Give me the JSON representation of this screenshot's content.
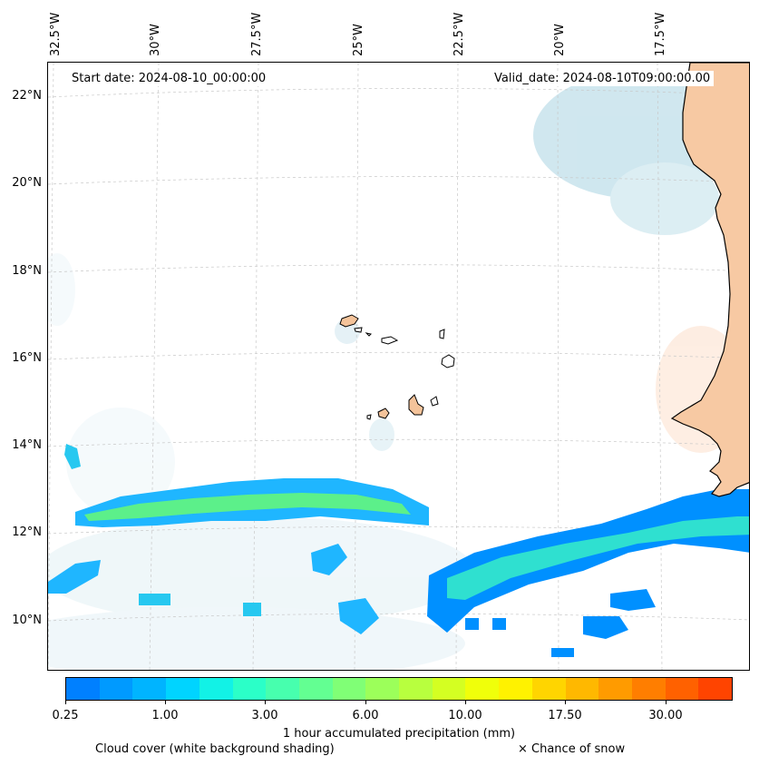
{
  "map": {
    "start_date_text": "Start date: 2024-08-10_00:00:00",
    "valid_date_text": "Valid_date: 2024-08-10T09:00:00.00",
    "lon_labels": [
      "32.5°W",
      "30°W",
      "27.5°W",
      "25°W",
      "22.5°W",
      "20°W",
      "17.5°W"
    ],
    "lat_labels": [
      "22°N",
      "20°N",
      "18°N",
      "16°N",
      "14°N",
      "12°N",
      "10°N"
    ],
    "land_color": "#f4c39a",
    "coast_color": "#000000",
    "cloud_color": "#c9e6ee"
  },
  "colorbar": {
    "colors": [
      "#0080ff",
      "#009aff",
      "#00b4ff",
      "#00d4ff",
      "#12f2e6",
      "#2bffc8",
      "#47ffae",
      "#63ff92",
      "#80ff76",
      "#9cff5a",
      "#b8ff3e",
      "#d4ff22",
      "#f0ff0a",
      "#fff200",
      "#ffd500",
      "#ffb800",
      "#ff9b00",
      "#ff7e00",
      "#ff6100",
      "#ff4400"
    ],
    "tick_labels": [
      "0.25",
      "1.00",
      "3.00",
      "6.00",
      "10.00",
      "17.50",
      "30.00"
    ],
    "label": "1 hour accumulated precipitation (mm)"
  },
  "legend": {
    "cloud_text": "Cloud cover (white background shading)",
    "snow_text": "× Chance of snow"
  }
}
